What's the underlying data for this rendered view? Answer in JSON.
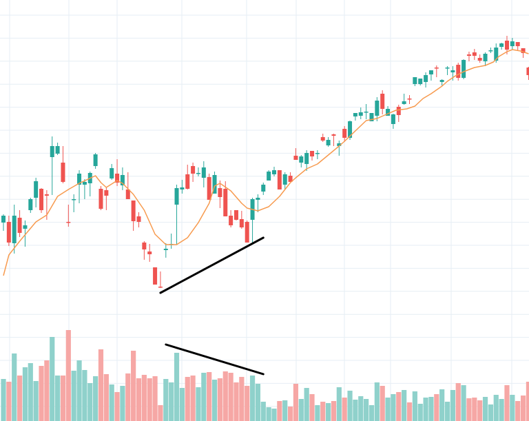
{
  "chart_data": {
    "type": "candlestick",
    "title": "",
    "xlabel": "",
    "ylabel": "",
    "grid": true,
    "ylim": [
      0,
      305.5
    ],
    "volume_ylim": [
      0,
      611
    ],
    "colors": {
      "up": "#26a69a",
      "down": "#ef5350",
      "volume_up": "#8fd1cb",
      "volume_down": "#f6a7a5",
      "moving_average": "#f79a4e",
      "trendline": "#000000",
      "grid": "#e6eef4",
      "background": "#ffffff"
    },
    "ohlc_order": [
      "open",
      "high",
      "low",
      "close"
    ],
    "candles": [
      [
        144,
        150,
        138,
        149
      ],
      [
        144.5,
        149,
        127,
        129.5
      ],
      [
        129,
        157,
        121.5,
        149
      ],
      [
        147.5,
        153,
        133.5,
        136.5
      ],
      [
        139.5,
        145.5,
        126.5,
        142
      ],
      [
        153,
        162,
        151,
        161
      ],
      [
        162,
        176.5,
        155,
        174
      ],
      [
        168.5,
        169,
        151,
        153
      ],
      [
        164.5,
        167.5,
        146,
        163.5
      ],
      [
        191.5,
        206.5,
        164,
        199.5
      ],
      [
        194,
        202,
        193,
        199.5
      ],
      [
        187.5,
        199.5,
        172.5,
        173.5
      ],
      [
        144.5,
        157,
        141,
        144
      ],
      [
        160.5,
        164.5,
        151.5,
        161
      ],
      [
        171.5,
        182,
        158,
        179.5
      ],
      [
        171.5,
        175.5,
        161,
        173.5
      ],
      [
        172.5,
        181,
        163,
        180
      ],
      [
        185,
        194.5,
        183,
        193.5
      ],
      [
        168.5,
        170.5,
        153,
        154
      ],
      [
        167.5,
        169.5,
        153,
        163.5
      ],
      [
        176,
        186.5,
        175,
        183.5
      ],
      [
        179.5,
        190,
        170.5,
        173
      ],
      [
        171,
        184,
        167.5,
        178.5
      ],
      [
        168,
        180.5,
        161,
        161
      ],
      [
        160,
        160,
        138,
        145
      ],
      [
        148.5,
        151.5,
        140.5,
        144.5
      ],
      [
        129.5,
        130.5,
        117,
        124.5
      ],
      [
        123,
        128.5,
        115.5,
        121
      ],
      [
        111.5,
        111.5,
        99,
        99
      ],
      [
        97.5,
        108.5,
        96.5,
        97
      ],
      [
        124,
        129,
        118.5,
        125
      ],
      [
        128,
        136,
        125,
        128.5
      ],
      [
        157,
        171.5,
        128,
        169
      ],
      [
        168,
        175,
        165,
        169.5
      ],
      [
        179,
        186,
        168,
        168.5
      ],
      [
        185,
        187.5,
        173.5,
        179.5
      ],
      [
        179.5,
        184,
        177.5,
        180
      ],
      [
        176.5,
        188.5,
        169.5,
        184
      ],
      [
        177,
        179.5,
        160.5,
        160.5
      ],
      [
        165,
        181,
        165,
        178.5
      ],
      [
        169,
        174.5,
        154.5,
        162.5
      ],
      [
        168.5,
        174,
        148.5,
        148.5
      ],
      [
        149,
        153,
        140.5,
        142
      ],
      [
        153,
        153,
        145.5,
        146
      ],
      [
        146.5,
        152.5,
        139.5,
        140.5
      ],
      [
        144.5,
        145.5,
        129.5,
        129.5
      ],
      [
        146,
        162,
        129.5,
        161
      ],
      [
        160.5,
        164.5,
        151.5,
        162
      ],
      [
        166.5,
        173,
        164,
        171.5
      ],
      [
        174.5,
        182,
        174.5,
        181
      ],
      [
        179,
        184.5,
        177.5,
        182
      ],
      [
        182,
        182,
        168,
        168
      ],
      [
        171.5,
        180.5,
        168,
        179
      ],
      [
        178,
        180.5,
        173.5,
        173.5
      ],
      [
        192.5,
        198,
        189.5,
        189.5
      ],
      [
        187.5,
        193,
        184,
        192
      ],
      [
        186.5,
        196.5,
        181.5,
        194.5
      ],
      [
        196,
        196,
        189,
        192
      ],
      [
        194.5,
        196.5,
        190,
        194.5
      ],
      [
        206,
        208.5,
        202.5,
        203.5
      ],
      [
        200,
        206,
        199,
        204
      ],
      [
        208,
        208.5,
        199.5,
        207
      ],
      [
        199.5,
        203.5,
        192.5,
        201.5
      ],
      [
        212,
        214,
        202.5,
        205.5
      ],
      [
        205.5,
        218,
        204,
        217.5
      ],
      [
        221,
        223.5,
        218,
        223.5
      ],
      [
        221.5,
        227.5,
        219,
        224
      ],
      [
        224,
        230,
        219,
        224.5
      ],
      [
        217.5,
        223.5,
        217.5,
        223.5
      ],
      [
        221.5,
        235,
        217.5,
        232.5
      ],
      [
        237.5,
        240,
        222.5,
        226.5
      ],
      [
        221.5,
        228.5,
        221.5,
        226.5
      ],
      [
        215.5,
        223,
        212,
        222.5
      ],
      [
        228,
        229.5,
        217,
        222
      ],
      [
        230,
        237.5,
        229.5,
        232
      ],
      [
        234,
        236.5,
        230,
        233.5
      ],
      [
        244.5,
        249.5,
        243,
        249.5
      ],
      [
        244.5,
        248.5,
        243.5,
        248.5
      ],
      [
        246,
        253,
        242,
        251
      ],
      [
        251.5,
        254.5,
        247,
        254.5
      ],
      [
        256.5,
        258,
        249.5,
        256
      ],
      [
        246,
        248,
        243.5,
        247.5
      ],
      [
        256.5,
        257.5,
        251,
        256.5
      ],
      [
        253,
        257.5,
        247,
        254.5
      ],
      [
        258.5,
        260,
        247,
        249
      ],
      [
        249,
        262.5,
        248,
        262
      ],
      [
        266,
        268,
        261,
        265
      ],
      [
        267.5,
        270,
        262,
        265
      ],
      [
        263.5,
        266,
        260,
        261.5
      ],
      [
        261,
        267.5,
        257.5,
        266.5
      ],
      [
        269,
        271,
        267,
        269
      ],
      [
        261.5,
        274,
        260,
        271
      ],
      [
        271.5,
        274.5,
        269.5,
        274
      ],
      [
        276,
        279.5,
        266,
        269.5
      ],
      [
        272,
        278,
        269.5,
        275.5
      ],
      [
        275,
        275,
        269,
        272
      ],
      [
        270.5,
        270.5,
        263.5,
        267
      ],
      [
        256.5,
        257,
        247.5,
        251
      ]
    ],
    "volume": [
      61,
      57,
      98,
      66,
      78,
      84,
      58,
      80,
      88,
      122,
      66,
      66,
      132,
      73,
      88,
      74,
      55,
      65,
      104,
      68,
      53,
      42,
      51,
      69,
      102,
      62,
      67,
      62,
      65,
      23,
      61,
      56,
      99,
      48,
      64,
      66,
      49,
      70,
      71,
      60,
      62,
      72,
      70,
      56,
      64,
      51,
      66,
      54,
      28,
      20,
      18,
      29,
      30,
      21,
      54,
      32,
      48,
      39,
      23,
      28,
      26,
      29,
      49,
      34,
      44,
      31,
      36,
      32,
      23,
      56,
      51,
      34,
      39,
      42,
      45,
      27,
      43,
      25,
      34,
      35,
      39,
      46,
      28,
      45,
      55,
      52,
      33,
      34,
      30,
      35,
      24,
      38,
      32,
      52,
      38,
      29,
      37,
      57
    ],
    "moving_average": [
      [
        0,
        105.5
      ],
      [
        1,
        120.5
      ],
      [
        3,
        130.5
      ],
      [
        6,
        144.5
      ],
      [
        8,
        149.5
      ],
      [
        10,
        163
      ],
      [
        12,
        168
      ],
      [
        14,
        172.5
      ],
      [
        17,
        178
      ],
      [
        18,
        173
      ],
      [
        19,
        169.5
      ],
      [
        21,
        174.5
      ],
      [
        22,
        172.5
      ],
      [
        24,
        164.5
      ],
      [
        26,
        153
      ],
      [
        28,
        135.5
      ],
      [
        30,
        128
      ],
      [
        32,
        128
      ],
      [
        34,
        133
      ],
      [
        36,
        144
      ],
      [
        38,
        158
      ],
      [
        39,
        170.5
      ],
      [
        40,
        172.5
      ],
      [
        42,
        167
      ],
      [
        44,
        158
      ],
      [
        45,
        154.5
      ],
      [
        47,
        152.5
      ],
      [
        49,
        155.5
      ],
      [
        51,
        163
      ],
      [
        53,
        173
      ],
      [
        54,
        176.5
      ],
      [
        56,
        183
      ],
      [
        58,
        186.5
      ],
      [
        60,
        193
      ],
      [
        62,
        199.5
      ],
      [
        63,
        203
      ],
      [
        65,
        210.5
      ],
      [
        67,
        218
      ],
      [
        69,
        219.5
      ],
      [
        71,
        223
      ],
      [
        72.5,
        225.5
      ],
      [
        74.5,
        226.5
      ],
      [
        76,
        228.5
      ],
      [
        77.5,
        234
      ],
      [
        79,
        237.5
      ],
      [
        81,
        243
      ],
      [
        82,
        246.5
      ],
      [
        83.5,
        250.5
      ],
      [
        85,
        253.5
      ],
      [
        87,
        256.5
      ],
      [
        89,
        258
      ],
      [
        90.5,
        260.5
      ],
      [
        91.5,
        264.5
      ],
      [
        93,
        268
      ],
      [
        94,
        269.5
      ],
      [
        95.5,
        268.5
      ],
      [
        97,
        266.5
      ]
    ],
    "trendlines": [
      {
        "panel": "price",
        "from": [
          29,
          93
        ],
        "to": [
          48,
          133
        ]
      },
      {
        "panel": "volume",
        "from": [
          30,
          111
        ],
        "to": [
          48,
          68
        ]
      }
    ]
  }
}
